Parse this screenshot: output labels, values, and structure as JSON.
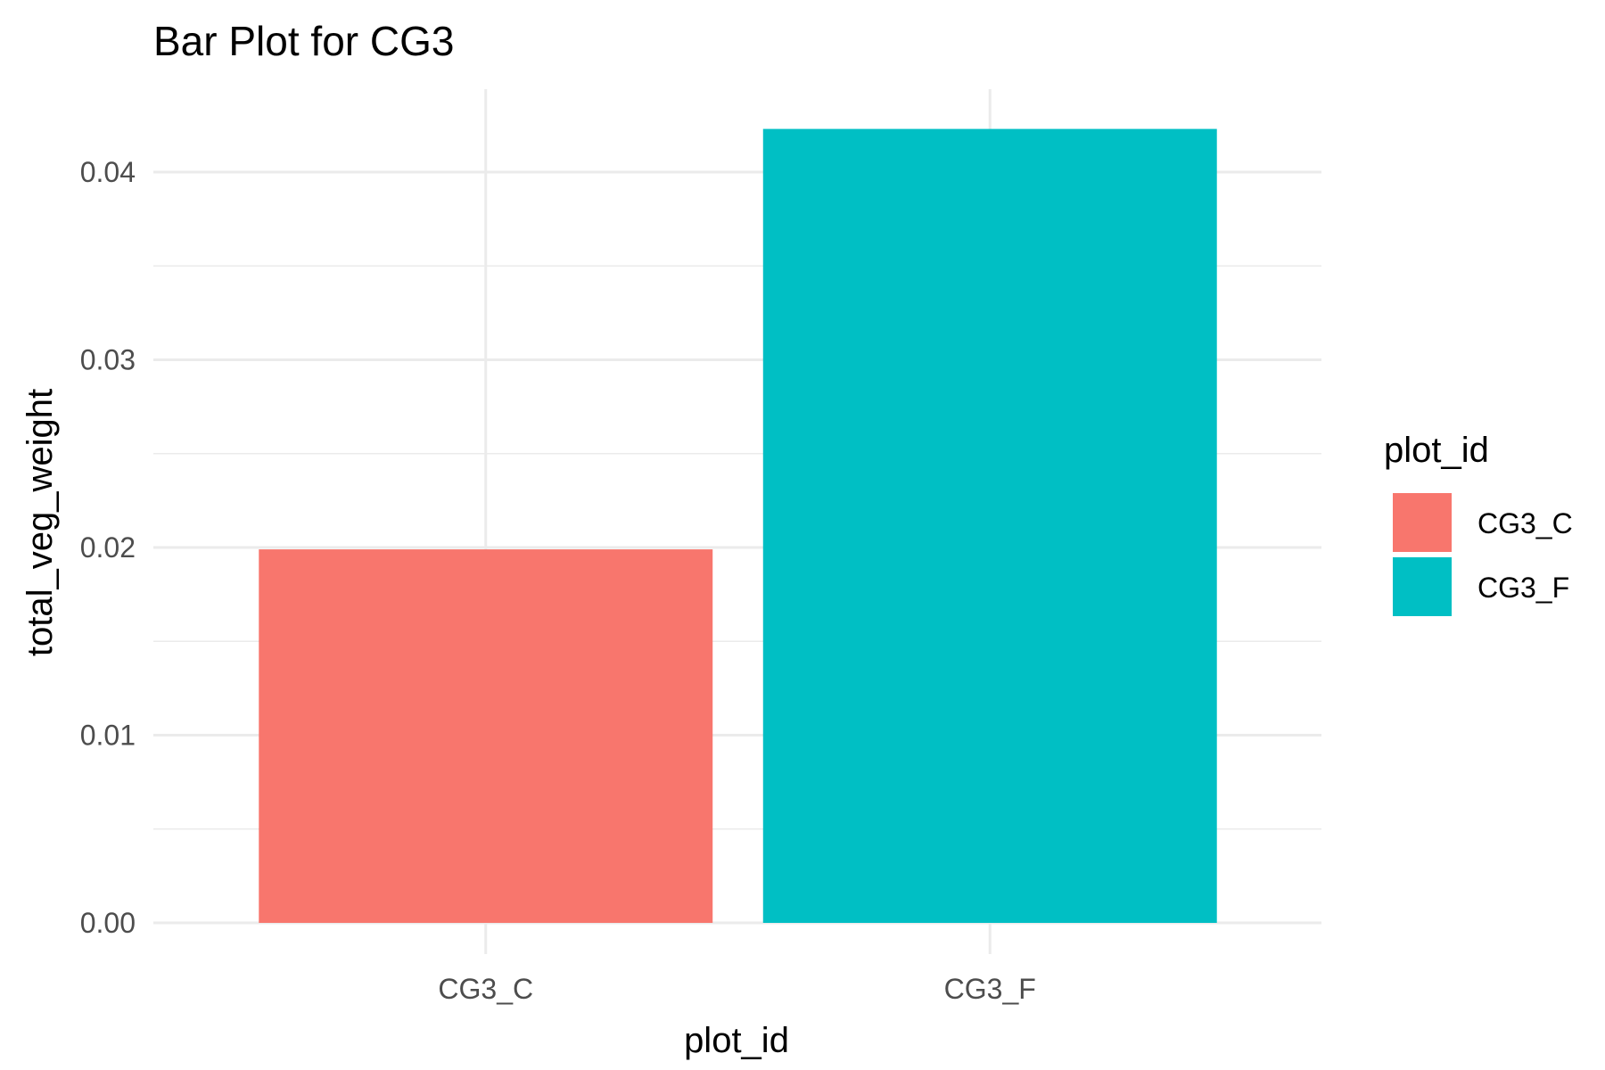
{
  "chart_data": {
    "type": "bar",
    "title": "Bar Plot for CG3",
    "xlabel": "plot_id",
    "ylabel": "total_veg_weight",
    "categories": [
      "CG3_C",
      "CG3_F"
    ],
    "values": [
      0.0199,
      0.0423
    ],
    "colors": [
      "#F8766D",
      "#00BFC4"
    ],
    "ylim": [
      0,
      0.044
    ],
    "yticks": [
      0,
      0.01,
      0.02,
      0.03,
      0.04
    ],
    "ytick_labels": [
      "0.00",
      "0.01",
      "0.02",
      "0.03",
      "0.04"
    ],
    "grid": true,
    "legend": {
      "title": "plot_id",
      "position": "right",
      "entries": [
        "CG3_C",
        "CG3_F"
      ]
    }
  }
}
